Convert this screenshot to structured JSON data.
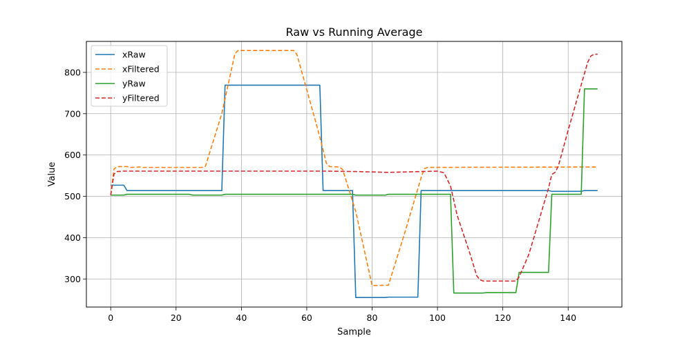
{
  "chart_data": {
    "type": "line",
    "title": "Raw vs Running Average",
    "xlabel": "Sample",
    "ylabel": "Value",
    "xlim": [
      -7.45,
      156.45
    ],
    "ylim": [
      232,
      875
    ],
    "xticks": [
      0,
      20,
      40,
      60,
      80,
      100,
      120,
      140
    ],
    "yticks": [
      300,
      400,
      500,
      600,
      700,
      800
    ],
    "grid": true,
    "legend_position": "upper-left",
    "series": [
      {
        "name": "xRaw",
        "color": "#1f77b4",
        "dash": "solid",
        "points": [
          [
            0,
            527
          ],
          [
            4,
            527
          ],
          [
            5,
            514
          ],
          [
            34,
            514
          ],
          [
            35,
            769
          ],
          [
            64,
            769
          ],
          [
            65,
            514
          ],
          [
            74,
            514
          ],
          [
            75,
            255
          ],
          [
            84,
            255
          ],
          [
            85,
            256
          ],
          [
            94,
            256
          ],
          [
            95,
            514
          ],
          [
            134,
            514
          ],
          [
            135,
            512
          ],
          [
            144,
            512
          ],
          [
            145,
            514
          ],
          [
            149,
            514
          ]
        ]
      },
      {
        "name": "xFiltered",
        "color": "#ff7f0e",
        "dash": "dashed",
        "points": [
          [
            0,
            503
          ],
          [
            1,
            566
          ],
          [
            2,
            572
          ],
          [
            5,
            572
          ],
          [
            6,
            570
          ],
          [
            9,
            571
          ],
          [
            10,
            570
          ],
          [
            28,
            570
          ],
          [
            29,
            573
          ],
          [
            34,
            700
          ],
          [
            38,
            845
          ],
          [
            39,
            853
          ],
          [
            56,
            853
          ],
          [
            57,
            843
          ],
          [
            63,
            673
          ],
          [
            65,
            613
          ],
          [
            66,
            580
          ],
          [
            67,
            572
          ],
          [
            70,
            571
          ],
          [
            71,
            565
          ],
          [
            75,
            463
          ],
          [
            79,
            320
          ],
          [
            80,
            284
          ],
          [
            85,
            285
          ],
          [
            90,
            412
          ],
          [
            95,
            545
          ],
          [
            96,
            567
          ],
          [
            97,
            570
          ],
          [
            148,
            571
          ],
          [
            149,
            571
          ]
        ]
      },
      {
        "name": "yRaw",
        "color": "#2ca02c",
        "dash": "solid",
        "points": [
          [
            0,
            503
          ],
          [
            4,
            503
          ],
          [
            5,
            505
          ],
          [
            24,
            505
          ],
          [
            25,
            503
          ],
          [
            34,
            503
          ],
          [
            35,
            505
          ],
          [
            74,
            505
          ],
          [
            75,
            503
          ],
          [
            84,
            503
          ],
          [
            85,
            505
          ],
          [
            104,
            505
          ],
          [
            105,
            266
          ],
          [
            114,
            266
          ],
          [
            115,
            267
          ],
          [
            124,
            267
          ],
          [
            125,
            316
          ],
          [
            134,
            316
          ],
          [
            135,
            505
          ],
          [
            144,
            505
          ],
          [
            145,
            760
          ],
          [
            149,
            760
          ]
        ]
      },
      {
        "name": "yFiltered",
        "color": "#d62728",
        "dash": "dashed",
        "points": [
          [
            0,
            503
          ],
          [
            1,
            554
          ],
          [
            2,
            560
          ],
          [
            4,
            561
          ],
          [
            66,
            561
          ],
          [
            75,
            560
          ],
          [
            85,
            558
          ],
          [
            95,
            560
          ],
          [
            100,
            561
          ],
          [
            102,
            557
          ],
          [
            104,
            525
          ],
          [
            106,
            455
          ],
          [
            110,
            360
          ],
          [
            112,
            308
          ],
          [
            113,
            298
          ],
          [
            114,
            295
          ],
          [
            124,
            295
          ],
          [
            125,
            305
          ],
          [
            128,
            360
          ],
          [
            134,
            520
          ],
          [
            135,
            553
          ],
          [
            136,
            558
          ],
          [
            137,
            573
          ],
          [
            140,
            660
          ],
          [
            144,
            770
          ],
          [
            146,
            825
          ],
          [
            147,
            840
          ],
          [
            148,
            844
          ],
          [
            149,
            844
          ]
        ]
      }
    ]
  }
}
